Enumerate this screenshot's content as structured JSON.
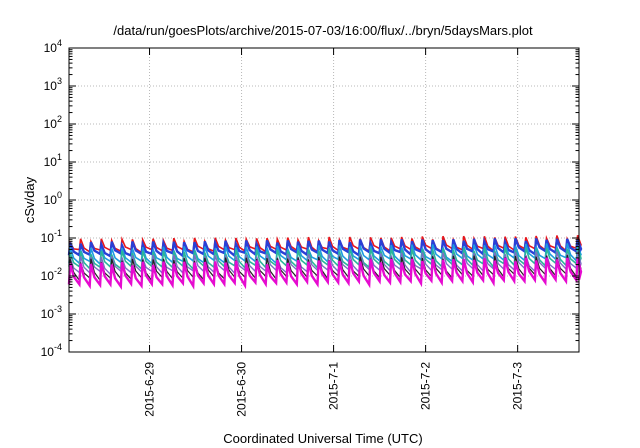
{
  "chart_data": {
    "type": "line",
    "title": "/data/run/goesPlots/archive/2015-07-03/16:00/flux/../bryn/5daysMars.plot",
    "xlabel": "Coordinated Universal Time (UTC)",
    "ylabel": "cSv/day",
    "yscale": "log",
    "ylim": [
      0.0001,
      10000
    ],
    "y_ticks": [
      {
        "base": "10",
        "exp": "-4",
        "value": 0.0001
      },
      {
        "base": "10",
        "exp": "-3",
        "value": 0.001
      },
      {
        "base": "10",
        "exp": "-2",
        "value": 0.01
      },
      {
        "base": "10",
        "exp": "-1",
        "value": 0.1
      },
      {
        "base": "10",
        "exp": "0",
        "value": 1
      },
      {
        "base": "10",
        "exp": "1",
        "value": 10
      },
      {
        "base": "10",
        "exp": "2",
        "value": 100
      },
      {
        "base": "10",
        "exp": "3",
        "value": 1000
      },
      {
        "base": "10",
        "exp": "4",
        "value": 10000
      }
    ],
    "xlim": [
      "2015-06-28T03:00",
      "2015-07-03T16:00"
    ],
    "x_ticks": [
      {
        "label": "2015-6-29",
        "date": "2015-06-29T00:00"
      },
      {
        "label": "2015-6-30",
        "date": "2015-06-30T00:00"
      },
      {
        "label": "2015-7-1",
        "date": "2015-07-01T00:00"
      },
      {
        "label": "2015-7-2",
        "date": "2015-07-02T00:00"
      },
      {
        "label": "2015-7-3",
        "date": "2015-07-03T00:00"
      }
    ],
    "grid": true,
    "cycle_hours": 2.7,
    "series": [
      {
        "color": "#e8151b",
        "width": 1.6,
        "peak_start": 0.085,
        "peak_end": 0.105,
        "trough_start": 0.045,
        "trough_end": 0.05
      },
      {
        "color": "#2a3fd6",
        "width": 2.4,
        "peak_start": 0.07,
        "peak_end": 0.09,
        "trough_start": 0.035,
        "trough_end": 0.042
      },
      {
        "color": "#1e9ae0",
        "width": 1.6,
        "peak_start": 0.05,
        "peak_end": 0.065,
        "trough_start": 0.022,
        "trough_end": 0.028
      },
      {
        "color": "#2bb59a",
        "width": 1.6,
        "peak_start": 0.04,
        "peak_end": 0.052,
        "trough_start": 0.016,
        "trough_end": 0.02
      },
      {
        "color": "#7a6fc4",
        "width": 1.4,
        "peak_start": 0.03,
        "peak_end": 0.04,
        "trough_start": 0.012,
        "trough_end": 0.015
      },
      {
        "color": "#222222",
        "width": 1.2,
        "peak_start": 0.025,
        "peak_end": 0.032,
        "trough_start": 0.008,
        "trough_end": 0.0105
      },
      {
        "color": "#e60bd0",
        "width": 2.4,
        "peak_start": 0.02,
        "peak_end": 0.028,
        "trough_start": 0.0055,
        "trough_end": 0.0075
      }
    ]
  }
}
